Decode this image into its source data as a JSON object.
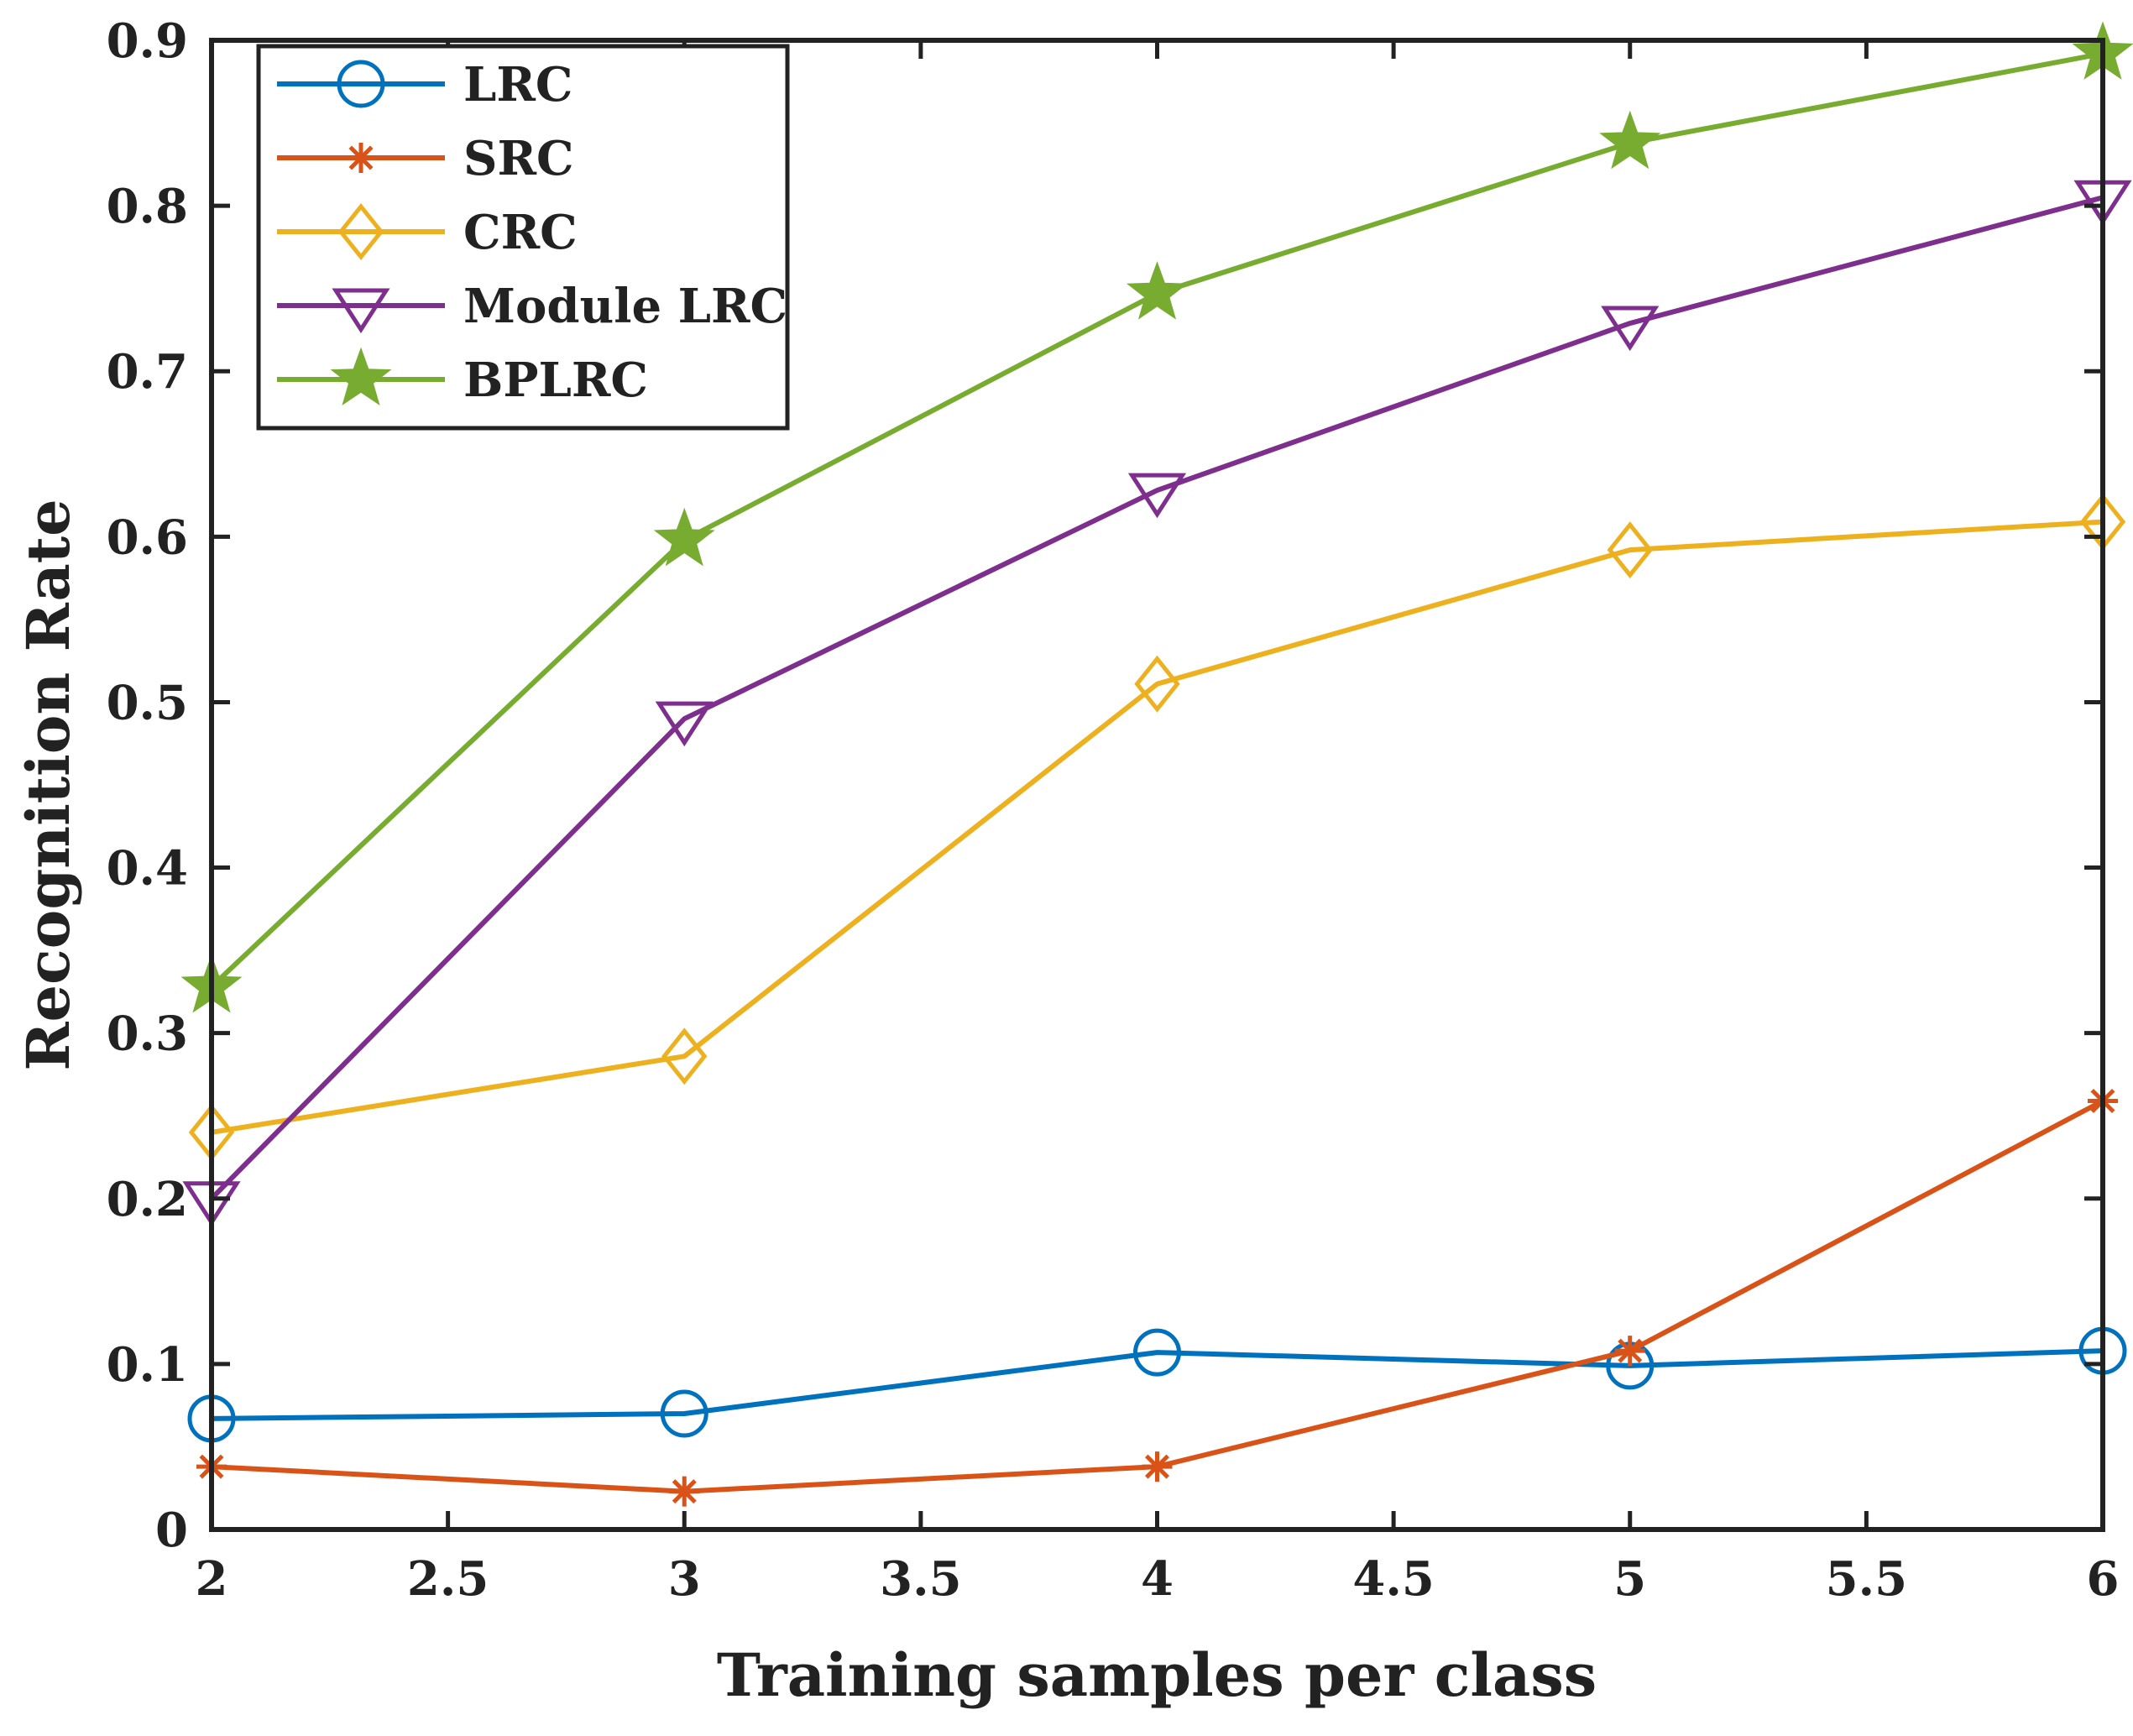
{
  "chart_data": {
    "type": "line",
    "title": "",
    "xlabel": "Training samples per class",
    "ylabel": "Recognition Rate",
    "xlim": [
      2,
      6
    ],
    "ylim": [
      0,
      0.9
    ],
    "xticks": [
      2,
      2.5,
      3,
      3.5,
      4,
      4.5,
      5,
      5.5,
      6
    ],
    "xtick_labels": [
      "2",
      "2.5",
      "3",
      "3.5",
      "4",
      "4.5",
      "5",
      "5.5",
      "6"
    ],
    "yticks": [
      0,
      0.1,
      0.2,
      0.3,
      0.4,
      0.5,
      0.6,
      0.7,
      0.8,
      0.9
    ],
    "ytick_labels": [
      "0",
      "0.1",
      "0.2",
      "0.3",
      "0.4",
      "0.5",
      "0.6",
      "0.7",
      "0.8",
      "0.9"
    ],
    "grid": false,
    "legend_position": "top-left",
    "x": [
      2,
      3,
      4,
      5,
      6
    ],
    "series": [
      {
        "name": "LRC",
        "color": "#0072BD",
        "marker": "circle",
        "values": [
          0.067,
          0.07,
          0.107,
          0.099,
          0.108
        ]
      },
      {
        "name": "SRC",
        "color": "#D95319",
        "marker": "asterisk",
        "values": [
          0.038,
          0.023,
          0.038,
          0.108,
          0.259
        ]
      },
      {
        "name": "CRC",
        "color": "#EDB120",
        "marker": "diamond",
        "values": [
          0.24,
          0.286,
          0.511,
          0.592,
          0.609
        ]
      },
      {
        "name": "Module LRC",
        "color": "#7E2F8E",
        "marker": "triangle-down",
        "values": [
          0.2,
          0.49,
          0.628,
          0.729,
          0.805
        ]
      },
      {
        "name": "BPLRC",
        "color": "#77AC30",
        "marker": "star",
        "values": [
          0.328,
          0.598,
          0.747,
          0.838,
          0.892
        ]
      }
    ]
  }
}
